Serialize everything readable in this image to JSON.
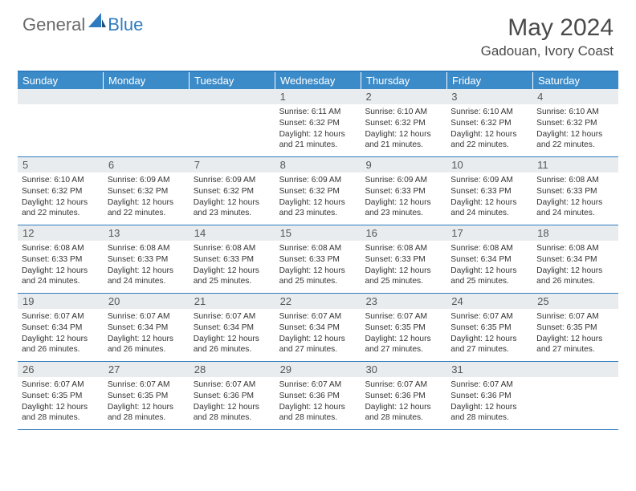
{
  "logo": {
    "general": "General",
    "blue": "Blue"
  },
  "title": "May 2024",
  "location": "Gadouan, Ivory Coast",
  "header_color": "#3b8bc9",
  "border_color": "#2f7bbf",
  "daynum_bg": "#e9ecef",
  "dow": [
    "Sunday",
    "Monday",
    "Tuesday",
    "Wednesday",
    "Thursday",
    "Friday",
    "Saturday"
  ],
  "weeks": [
    [
      {
        "n": "",
        "sr": "",
        "ss": "",
        "dl": ""
      },
      {
        "n": "",
        "sr": "",
        "ss": "",
        "dl": ""
      },
      {
        "n": "",
        "sr": "",
        "ss": "",
        "dl": ""
      },
      {
        "n": "1",
        "sr": "6:11 AM",
        "ss": "6:32 PM",
        "dl": "12 hours and 21 minutes."
      },
      {
        "n": "2",
        "sr": "6:10 AM",
        "ss": "6:32 PM",
        "dl": "12 hours and 21 minutes."
      },
      {
        "n": "3",
        "sr": "6:10 AM",
        "ss": "6:32 PM",
        "dl": "12 hours and 22 minutes."
      },
      {
        "n": "4",
        "sr": "6:10 AM",
        "ss": "6:32 PM",
        "dl": "12 hours and 22 minutes."
      }
    ],
    [
      {
        "n": "5",
        "sr": "6:10 AM",
        "ss": "6:32 PM",
        "dl": "12 hours and 22 minutes."
      },
      {
        "n": "6",
        "sr": "6:09 AM",
        "ss": "6:32 PM",
        "dl": "12 hours and 22 minutes."
      },
      {
        "n": "7",
        "sr": "6:09 AM",
        "ss": "6:32 PM",
        "dl": "12 hours and 23 minutes."
      },
      {
        "n": "8",
        "sr": "6:09 AM",
        "ss": "6:32 PM",
        "dl": "12 hours and 23 minutes."
      },
      {
        "n": "9",
        "sr": "6:09 AM",
        "ss": "6:33 PM",
        "dl": "12 hours and 23 minutes."
      },
      {
        "n": "10",
        "sr": "6:09 AM",
        "ss": "6:33 PM",
        "dl": "12 hours and 24 minutes."
      },
      {
        "n": "11",
        "sr": "6:08 AM",
        "ss": "6:33 PM",
        "dl": "12 hours and 24 minutes."
      }
    ],
    [
      {
        "n": "12",
        "sr": "6:08 AM",
        "ss": "6:33 PM",
        "dl": "12 hours and 24 minutes."
      },
      {
        "n": "13",
        "sr": "6:08 AM",
        "ss": "6:33 PM",
        "dl": "12 hours and 24 minutes."
      },
      {
        "n": "14",
        "sr": "6:08 AM",
        "ss": "6:33 PM",
        "dl": "12 hours and 25 minutes."
      },
      {
        "n": "15",
        "sr": "6:08 AM",
        "ss": "6:33 PM",
        "dl": "12 hours and 25 minutes."
      },
      {
        "n": "16",
        "sr": "6:08 AM",
        "ss": "6:33 PM",
        "dl": "12 hours and 25 minutes."
      },
      {
        "n": "17",
        "sr": "6:08 AM",
        "ss": "6:34 PM",
        "dl": "12 hours and 25 minutes."
      },
      {
        "n": "18",
        "sr": "6:08 AM",
        "ss": "6:34 PM",
        "dl": "12 hours and 26 minutes."
      }
    ],
    [
      {
        "n": "19",
        "sr": "6:07 AM",
        "ss": "6:34 PM",
        "dl": "12 hours and 26 minutes."
      },
      {
        "n": "20",
        "sr": "6:07 AM",
        "ss": "6:34 PM",
        "dl": "12 hours and 26 minutes."
      },
      {
        "n": "21",
        "sr": "6:07 AM",
        "ss": "6:34 PM",
        "dl": "12 hours and 26 minutes."
      },
      {
        "n": "22",
        "sr": "6:07 AM",
        "ss": "6:34 PM",
        "dl": "12 hours and 27 minutes."
      },
      {
        "n": "23",
        "sr": "6:07 AM",
        "ss": "6:35 PM",
        "dl": "12 hours and 27 minutes."
      },
      {
        "n": "24",
        "sr": "6:07 AM",
        "ss": "6:35 PM",
        "dl": "12 hours and 27 minutes."
      },
      {
        "n": "25",
        "sr": "6:07 AM",
        "ss": "6:35 PM",
        "dl": "12 hours and 27 minutes."
      }
    ],
    [
      {
        "n": "26",
        "sr": "6:07 AM",
        "ss": "6:35 PM",
        "dl": "12 hours and 28 minutes."
      },
      {
        "n": "27",
        "sr": "6:07 AM",
        "ss": "6:35 PM",
        "dl": "12 hours and 28 minutes."
      },
      {
        "n": "28",
        "sr": "6:07 AM",
        "ss": "6:36 PM",
        "dl": "12 hours and 28 minutes."
      },
      {
        "n": "29",
        "sr": "6:07 AM",
        "ss": "6:36 PM",
        "dl": "12 hours and 28 minutes."
      },
      {
        "n": "30",
        "sr": "6:07 AM",
        "ss": "6:36 PM",
        "dl": "12 hours and 28 minutes."
      },
      {
        "n": "31",
        "sr": "6:07 AM",
        "ss": "6:36 PM",
        "dl": "12 hours and 28 minutes."
      },
      {
        "n": "",
        "sr": "",
        "ss": "",
        "dl": ""
      }
    ]
  ],
  "labels": {
    "sunrise": "Sunrise:",
    "sunset": "Sunset:",
    "daylight": "Daylight:"
  }
}
